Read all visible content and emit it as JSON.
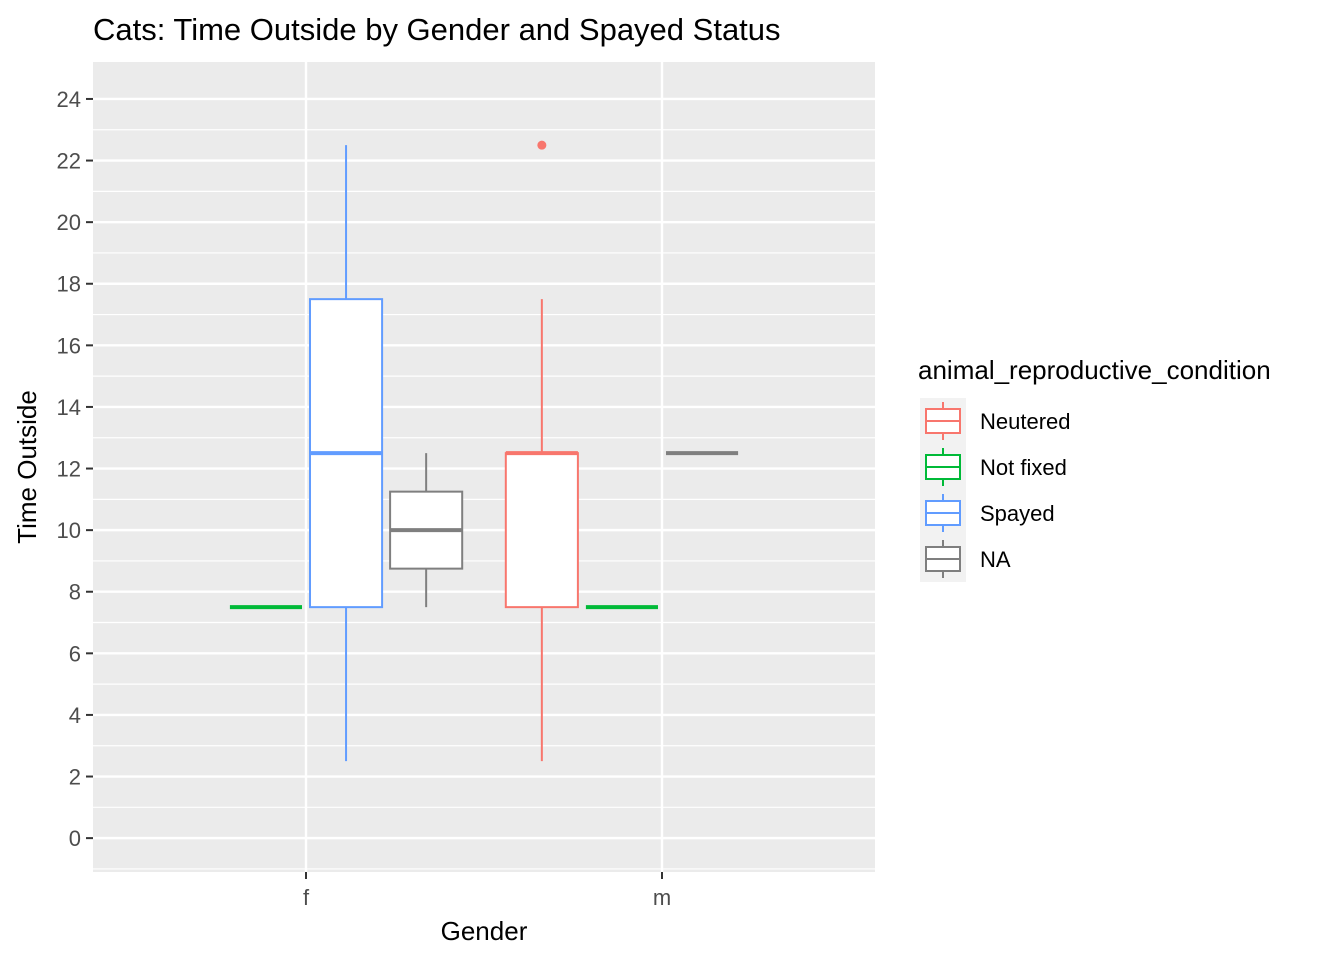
{
  "chart_data": {
    "type": "boxplot",
    "title": "Cats: Time Outside by Gender and Spayed Status",
    "xlabel": "Gender",
    "ylabel": "Time Outside",
    "categories": [
      "f",
      "m"
    ],
    "ylim": [
      -1.1,
      25.2
    ],
    "yticks": [
      0,
      2,
      4,
      6,
      8,
      10,
      12,
      14,
      16,
      18,
      20,
      22,
      24
    ],
    "grid": true,
    "legend": {
      "title": "animal_reproductive_condition",
      "placement": "right",
      "entries": [
        {
          "name": "Neutered",
          "color": "#F8766D"
        },
        {
          "name": "Not fixed",
          "color": "#00BA38"
        },
        {
          "name": "Spayed",
          "color": "#619CFF"
        },
        {
          "name": "NA",
          "color": "#7F7F7F"
        }
      ]
    },
    "groups": [
      {
        "category": "f",
        "series": "Not fixed",
        "slot": 1,
        "min": 7.5,
        "q1": 7.5,
        "median": 7.5,
        "q3": 7.5,
        "max": 7.5,
        "outliers": []
      },
      {
        "category": "f",
        "series": "Spayed",
        "slot": 2,
        "min": 2.5,
        "q1": 7.5,
        "median": 12.5,
        "q3": 17.5,
        "max": 22.5,
        "outliers": []
      },
      {
        "category": "f",
        "series": "NA",
        "slot": 3,
        "min": 7.5,
        "q1": 8.75,
        "median": 10,
        "q3": 11.25,
        "max": 12.5,
        "outliers": []
      },
      {
        "category": "m",
        "series": "Neutered",
        "slot": 0,
        "min": 2.5,
        "q1": 7.5,
        "median": 12.5,
        "q3": 12.5,
        "max": 17.5,
        "outliers": [
          22.5
        ]
      },
      {
        "category": "m",
        "series": "Not fixed",
        "slot": 1,
        "min": 7.5,
        "q1": 7.5,
        "median": 7.5,
        "q3": 7.5,
        "max": 7.5,
        "outliers": []
      },
      {
        "category": "m",
        "series": "NA",
        "slot": 2,
        "min": 12.5,
        "q1": 12.5,
        "median": 12.5,
        "q3": 12.5,
        "max": 12.5,
        "outliers": []
      }
    ]
  }
}
